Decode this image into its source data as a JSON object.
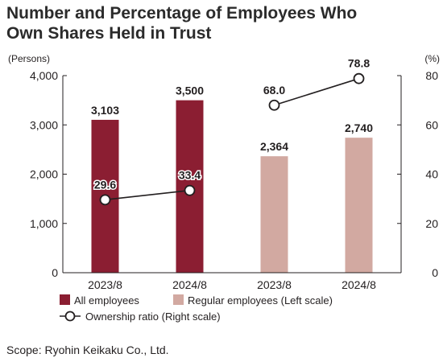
{
  "title_line1": "Number and Percentage of Employees Who",
  "title_line2": "Own Shares Held in Trust",
  "scope": "Scope: Ryohin Keikaku Co., Ltd.",
  "chart_data": {
    "type": "bar",
    "categories": [
      "2023/8",
      "2024/8",
      "2023/8",
      "2024/8"
    ],
    "left_axis": {
      "unit_label": "(Persons)",
      "range": [
        0,
        4000
      ],
      "ticks": [
        "4,000",
        "3,000",
        "2,000",
        "1,000",
        "0"
      ]
    },
    "right_axis": {
      "unit_label": "(%)",
      "range": [
        0,
        80
      ],
      "ticks": [
        "80",
        "60",
        "40",
        "20",
        "0"
      ]
    },
    "series": [
      {
        "name": "All employees",
        "kind": "bar",
        "axis": "left",
        "color": "#8b1e32",
        "points": [
          {
            "category_index": 0,
            "value": 3103,
            "label": "3,103"
          },
          {
            "category_index": 1,
            "value": 3500,
            "label": "3,500"
          }
        ]
      },
      {
        "name": "Regular employees  (Left scale)",
        "kind": "bar",
        "axis": "left",
        "color": "#d2a9a1",
        "points": [
          {
            "category_index": 2,
            "value": 2364,
            "label": "2,364"
          },
          {
            "category_index": 3,
            "value": 2740,
            "label": "2,740"
          }
        ]
      },
      {
        "name": "Ownership ratio (Right scale)",
        "kind": "line",
        "axis": "right",
        "color": "#231f20",
        "segments": [
          [
            {
              "category_index": 0,
              "value": 29.6,
              "label": "29.6"
            },
            {
              "category_index": 1,
              "value": 33.4,
              "label": "33.4"
            }
          ],
          [
            {
              "category_index": 2,
              "value": 68.0,
              "label": "68.0"
            },
            {
              "category_index": 3,
              "value": 78.8,
              "label": "78.8"
            }
          ]
        ]
      }
    ],
    "grid": false,
    "legend_placement": "bottom-left"
  }
}
